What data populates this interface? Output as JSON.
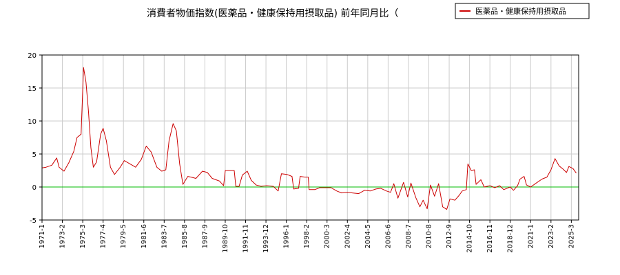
{
  "chart_data": {
    "type": "line",
    "title": "消費者物価指数(医薬品・健康保持用摂取品) 前年同月比（",
    "xlabel": "",
    "ylabel": "",
    "ylim": [
      -5,
      20
    ],
    "xlim": [
      "1971-01",
      "2025-12"
    ],
    "yticks": [
      -5,
      0,
      5,
      10,
      15,
      20
    ],
    "xticks": [
      "1971-1",
      "1973-2",
      "1975-3",
      "1977-4",
      "1979-5",
      "1981-6",
      "1983-7",
      "1985-8",
      "1987-9",
      "1989-10",
      "1991-11",
      "1993-12",
      "1996-1",
      "1998-2",
      "2000-3",
      "2002-4",
      "2004-5",
      "2006-6",
      "2008-7",
      "2010-8",
      "2012-9",
      "2014-10",
      "2016-11",
      "2018-12",
      "2021-1",
      "2023-2",
      "2025-3"
    ],
    "grid": true,
    "legend_position": "top-right",
    "zero_line": true,
    "colors": {
      "series": "#cc0000",
      "zero_line": "#00bb00",
      "grid": "#cccccc",
      "axis": "#000000"
    },
    "series": [
      {
        "name": "医薬品・健康保持用摂取品",
        "points": [
          [
            "1971-01",
            2.9
          ],
          [
            "1971-06",
            3.0
          ],
          [
            "1972-01",
            3.3
          ],
          [
            "1972-07",
            4.4
          ],
          [
            "1972-10",
            3.0
          ],
          [
            "1973-04",
            2.4
          ],
          [
            "1973-10",
            3.7
          ],
          [
            "1974-04",
            5.4
          ],
          [
            "1974-08",
            7.5
          ],
          [
            "1975-01",
            8.0
          ],
          [
            "1975-04",
            18.1
          ],
          [
            "1975-07",
            15.9
          ],
          [
            "1975-10",
            11.5
          ],
          [
            "1976-01",
            6.0
          ],
          [
            "1976-04",
            3.0
          ],
          [
            "1976-08",
            3.8
          ],
          [
            "1977-01",
            8.0
          ],
          [
            "1977-04",
            8.9
          ],
          [
            "1977-08",
            7.0
          ],
          [
            "1978-01",
            3.0
          ],
          [
            "1978-06",
            1.9
          ],
          [
            "1979-01",
            3.0
          ],
          [
            "1979-06",
            4.0
          ],
          [
            "1980-01",
            3.5
          ],
          [
            "1980-08",
            3.0
          ],
          [
            "1981-03",
            4.2
          ],
          [
            "1981-09",
            6.2
          ],
          [
            "1982-03",
            5.3
          ],
          [
            "1982-10",
            3.0
          ],
          [
            "1983-04",
            2.4
          ],
          [
            "1983-09",
            2.6
          ],
          [
            "1984-01",
            7.0
          ],
          [
            "1984-06",
            9.6
          ],
          [
            "1984-10",
            8.5
          ],
          [
            "1985-02",
            3.5
          ],
          [
            "1985-06",
            0.4
          ],
          [
            "1985-12",
            1.6
          ],
          [
            "1986-04",
            1.5
          ],
          [
            "1986-10",
            1.3
          ],
          [
            "1987-06",
            2.4
          ],
          [
            "1987-12",
            2.2
          ],
          [
            "1988-06",
            1.3
          ],
          [
            "1989-03",
            0.9
          ],
          [
            "1989-08",
            0.2
          ],
          [
            "1989-10",
            2.5
          ],
          [
            "1990-04",
            2.5
          ],
          [
            "1990-09",
            2.5
          ],
          [
            "1990-11",
            0.1
          ],
          [
            "1991-03",
            0.1
          ],
          [
            "1991-07",
            1.8
          ],
          [
            "1992-01",
            2.4
          ],
          [
            "1992-06",
            1.0
          ],
          [
            "1992-12",
            0.3
          ],
          [
            "1993-06",
            0.1
          ],
          [
            "1994-01",
            0.2
          ],
          [
            "1994-09",
            0.1
          ],
          [
            "1995-03",
            -0.6
          ],
          [
            "1995-07",
            2.0
          ],
          [
            "1996-02",
            1.9
          ],
          [
            "1996-08",
            1.6
          ],
          [
            "1996-10",
            -0.3
          ],
          [
            "1997-04",
            -0.2
          ],
          [
            "1997-06",
            1.6
          ],
          [
            "1997-12",
            1.5
          ],
          [
            "1998-04",
            1.5
          ],
          [
            "1998-05",
            -0.4
          ],
          [
            "1998-12",
            -0.4
          ],
          [
            "1999-06",
            -0.1
          ],
          [
            "2000-01",
            -0.1
          ],
          [
            "2000-08",
            -0.1
          ],
          [
            "2001-03",
            -0.6
          ],
          [
            "2001-09",
            -0.9
          ],
          [
            "2002-04",
            -0.8
          ],
          [
            "2002-10",
            -0.9
          ],
          [
            "2003-06",
            -1.0
          ],
          [
            "2004-01",
            -0.5
          ],
          [
            "2004-08",
            -0.6
          ],
          [
            "2005-03",
            -0.3
          ],
          [
            "2005-09",
            -0.2
          ],
          [
            "2006-04",
            -0.6
          ],
          [
            "2006-09",
            -0.8
          ],
          [
            "2007-01",
            0.5
          ],
          [
            "2007-06",
            -1.7
          ],
          [
            "2008-01",
            0.7
          ],
          [
            "2008-06",
            -1.5
          ],
          [
            "2008-10",
            0.6
          ],
          [
            "2009-04",
            -1.6
          ],
          [
            "2009-09",
            -3.0
          ],
          [
            "2010-01",
            -2.0
          ],
          [
            "2010-06",
            -3.3
          ],
          [
            "2010-10",
            0.3
          ],
          [
            "2011-03",
            -1.4
          ],
          [
            "2011-08",
            0.5
          ],
          [
            "2012-01",
            -3.0
          ],
          [
            "2012-06",
            -3.4
          ],
          [
            "2012-10",
            -1.8
          ],
          [
            "2013-04",
            -2.0
          ],
          [
            "2013-09",
            -1.3
          ],
          [
            "2014-01",
            -0.6
          ],
          [
            "2014-06",
            -0.4
          ],
          [
            "2014-08",
            3.5
          ],
          [
            "2014-12",
            2.5
          ],
          [
            "2015-04",
            2.6
          ],
          [
            "2015-06",
            0.4
          ],
          [
            "2015-12",
            1.1
          ],
          [
            "2016-04",
            0.0
          ],
          [
            "2016-11",
            0.2
          ],
          [
            "2017-05",
            -0.1
          ],
          [
            "2017-11",
            0.2
          ],
          [
            "2018-04",
            -0.4
          ],
          [
            "2018-12",
            0.0
          ],
          [
            "2019-04",
            -0.5
          ],
          [
            "2019-09",
            0.2
          ],
          [
            "2019-12",
            1.2
          ],
          [
            "2020-05",
            1.6
          ],
          [
            "2020-08",
            0.3
          ],
          [
            "2021-01",
            0.0
          ],
          [
            "2021-08",
            0.6
          ],
          [
            "2022-03",
            1.2
          ],
          [
            "2022-09",
            1.5
          ],
          [
            "2023-02",
            2.6
          ],
          [
            "2023-07",
            4.3
          ],
          [
            "2023-12",
            3.2
          ],
          [
            "2024-05",
            2.7
          ],
          [
            "2024-09",
            2.2
          ],
          [
            "2024-12",
            3.1
          ],
          [
            "2025-05",
            2.8
          ],
          [
            "2025-09",
            2.1
          ]
        ]
      }
    ]
  }
}
